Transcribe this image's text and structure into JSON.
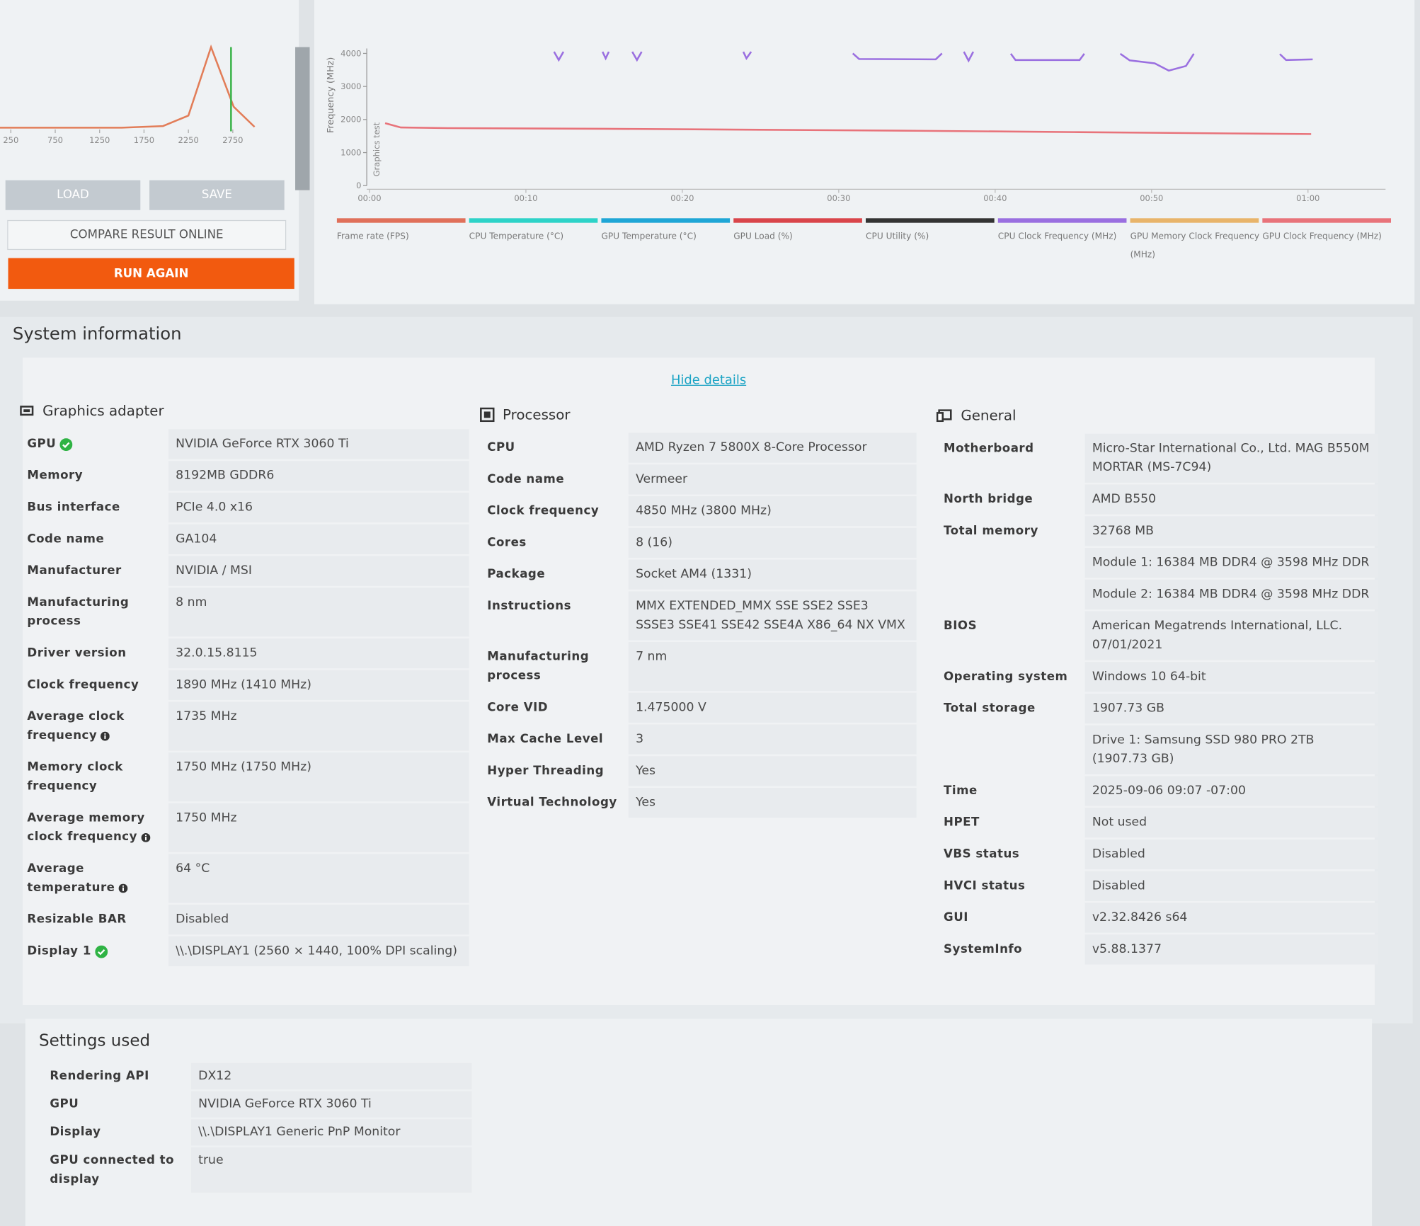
{
  "buttons": {
    "load": "LOAD",
    "save": "SAVE",
    "compare": "COMPARE RESULT ONLINE",
    "run_again": "RUN AGAIN"
  },
  "chart_data": [
    {
      "type": "line",
      "color": "#e27d58",
      "x": [
        128,
        500,
        1000,
        1500,
        1964,
        2250,
        2505,
        2760,
        2995
      ],
      "values": [
        0,
        0,
        0,
        0,
        2,
        15,
        100,
        26,
        1
      ],
      "xlim": [
        128,
        3290
      ],
      "ylim": [
        0,
        100
      ],
      "xticks": [
        250,
        750,
        1250,
        1750,
        2250,
        2750
      ],
      "marker": 2730,
      "marker_color": "#3cb44b"
    },
    {
      "type": "line",
      "ylabel": "Frequency (MHz)",
      "annotation": "Graphics test",
      "xlim": [
        0,
        66
      ],
      "ylim": [
        0,
        4150
      ],
      "xticks": [
        {
          "value": 0,
          "label": "00:00"
        },
        {
          "value": 10,
          "label": "00:10"
        },
        {
          "value": 20,
          "label": "00:20"
        },
        {
          "value": 30,
          "label": "00:30"
        },
        {
          "value": 40,
          "label": "00:40"
        },
        {
          "value": 50,
          "label": "00:50"
        },
        {
          "value": 60,
          "label": "01:00"
        }
      ],
      "yticks": [
        0,
        1000,
        2000,
        3000,
        4000
      ],
      "series": [
        {
          "name": "Frame rate (FPS)",
          "color": "#e0705a",
          "x": [],
          "values": []
        },
        {
          "name": "CPU Temperature (°C)",
          "color": "#2dd3c8",
          "x": [],
          "values": []
        },
        {
          "name": "GPU Temperature (°C)",
          "color": "#1fa6d6",
          "x": [],
          "values": []
        },
        {
          "name": "GPU Load (%)",
          "color": "#d9454a",
          "x": [],
          "values": []
        },
        {
          "name": "CPU Utility (%)",
          "color": "#333333",
          "x": [],
          "values": []
        },
        {
          "name": "CPU Clock Frequency (MHz)",
          "color": "#9a6fe0",
          "x": [
            11.8,
            12.1,
            12.4,
            13.5,
            14.9,
            15.1,
            15.3,
            16,
            16.8,
            17.1,
            17.4,
            20,
            23.9,
            24.1,
            24.4,
            28,
            30.9,
            31.3,
            36.2,
            36.6,
            37.3,
            38.0,
            38.3,
            38.6,
            40,
            41.0,
            41.3,
            45.4,
            45.7,
            47,
            48.0,
            48.6,
            50.2,
            51.1,
            52.2,
            52.7,
            55,
            58.2,
            58.6,
            60.3
          ],
          "values": [
            4050,
            3800,
            4050,
            null,
            4050,
            3850,
            4050,
            null,
            4050,
            3800,
            4050,
            null,
            4050,
            3850,
            4050,
            null,
            4000,
            3830,
            3820,
            4000,
            null,
            4050,
            3780,
            4050,
            null,
            3990,
            3800,
            3800,
            3990,
            null,
            3990,
            3790,
            3700,
            3480,
            3620,
            3990,
            null,
            3980,
            3800,
            3820
          ]
        },
        {
          "name": "GPU Memory Clock Frequency (MHz)",
          "color": "#e8b46a",
          "x": [],
          "values": []
        },
        {
          "name": "GPU Clock Frequency (MHz)",
          "color": "#e8737a",
          "x": [
            1,
            2,
            5,
            15,
            25,
            35,
            45,
            55,
            60.2
          ],
          "values": [
            1890,
            1760,
            1740,
            1720,
            1690,
            1660,
            1620,
            1580,
            1560
          ]
        }
      ]
    }
  ],
  "system_information": {
    "title": "System information",
    "toggle": "Hide details",
    "sections": [
      {
        "title": "Graphics adapter",
        "rows": [
          [
            "GPU",
            "NVIDIA GeForce RTX 3060 Ti"
          ],
          [
            "Memory",
            "8192MB GDDR6"
          ],
          [
            "Bus interface",
            "PCIe 4.0 x16"
          ],
          [
            "Code name",
            "GA104"
          ],
          [
            "Manufacturer",
            "NVIDIA / MSI"
          ],
          [
            "Manufacturing process",
            "8 nm"
          ],
          [
            "Driver version",
            "32.0.15.8115"
          ],
          [
            "Clock frequency",
            "1890 MHz (1410 MHz)"
          ],
          [
            "Average clock frequency",
            "1735 MHz"
          ],
          [
            "Memory clock frequency",
            "1750 MHz (1750 MHz)"
          ],
          [
            "Average memory clock frequency",
            "1750 MHz"
          ],
          [
            "Average temperature",
            "64 °C"
          ],
          [
            "Resizable BAR",
            "Disabled"
          ],
          [
            "Display 1",
            "\\\\.\\DISPLAY1 (2560 × 1440, 100% DPI scaling)"
          ]
        ]
      },
      {
        "title": "Processor",
        "rows": [
          [
            "CPU",
            "AMD Ryzen 7 5800X 8-Core Processor"
          ],
          [
            "Code name",
            "Vermeer"
          ],
          [
            "Clock frequency",
            "4850 MHz (3800 MHz)"
          ],
          [
            "Cores",
            "8 (16)"
          ],
          [
            "Package",
            "Socket AM4 (1331)"
          ],
          [
            "Instructions",
            "MMX EXTENDED_MMX SSE SSE2 SSE3 SSSE3 SSE41 SSE42 SSE4A X86_64 NX VMX"
          ],
          [
            "Manufacturing process",
            "7 nm"
          ],
          [
            "Core VID",
            "1.475000 V"
          ],
          [
            "Max Cache Level",
            "3"
          ],
          [
            "Hyper Threading",
            "Yes"
          ],
          [
            "Virtual Technology",
            "Yes"
          ]
        ]
      },
      {
        "title": "General",
        "rows": [
          [
            "Motherboard",
            "Micro-Star International Co., Ltd. MAG B550M MORTAR (MS-7C94)"
          ],
          [
            "North bridge",
            "AMD B550"
          ],
          [
            "Total memory",
            "32768 MB"
          ],
          [
            null,
            "Module 1: 16384 MB DDR4 @ 3598 MHz DDR"
          ],
          [
            null,
            "Module 2: 16384 MB DDR4 @ 3598 MHz DDR"
          ],
          [
            "BIOS",
            "American Megatrends International, LLC. 07/01/2021"
          ],
          [
            "Operating system",
            "Windows 10 64-bit"
          ],
          [
            "Total storage",
            "1907.73 GB"
          ],
          [
            null,
            "Drive 1: Samsung SSD 980 PRO 2TB (1907.73 GB)"
          ],
          [
            "Time",
            "2025-09-06 09:07 -07:00"
          ],
          [
            "HPET",
            "Not used"
          ],
          [
            "VBS status",
            "Disabled"
          ],
          [
            "HVCI status",
            "Disabled"
          ],
          [
            "GUI",
            "v2.32.8426 s64"
          ],
          [
            "SystemInfo",
            "v5.88.1377"
          ]
        ]
      }
    ]
  },
  "settings": {
    "title": "Settings used",
    "rows": [
      [
        "Rendering API",
        "DX12"
      ],
      [
        "GPU",
        "NVIDIA GeForce RTX 3060 Ti"
      ],
      [
        "Display",
        "\\\\.\\DISPLAY1 Generic PnP Monitor"
      ],
      [
        "GPU connected to display",
        "true"
      ]
    ]
  }
}
